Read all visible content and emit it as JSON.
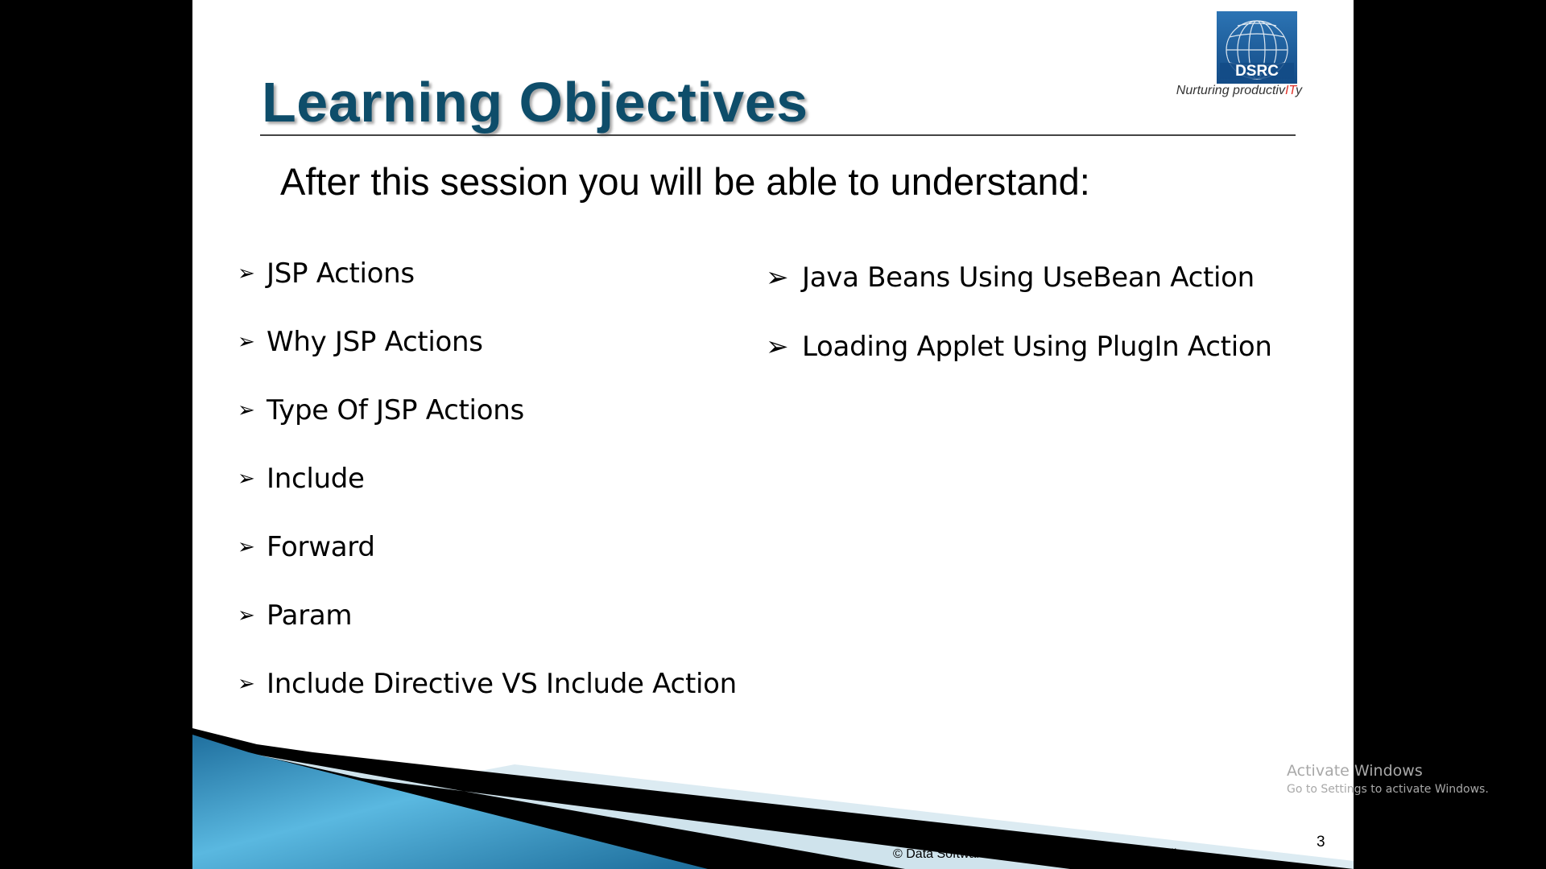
{
  "slide": {
    "title": "Learning Objectives",
    "subtitle": "After this session you will be able to understand:",
    "logo": {
      "text": "DSRC",
      "tagline_prefix": "Nurturing productiv",
      "tagline_accent": "IT",
      "tagline_suffix": "y",
      "icon": "globe-icon"
    },
    "bullet_glyph": "➢",
    "objectives_left": [
      "JSP Actions",
      "Why JSP Actions",
      "Type Of JSP Actions",
      "Include",
      "Forward",
      "Param",
      "Include Directive VS Include Action"
    ],
    "objectives_right": [
      "Java Beans Using UseBean Action",
      "Loading Applet Using PlugIn Action"
    ],
    "footer": "© Data Software Research Company Pvt Ltd. India",
    "page_number": "3"
  },
  "watermark": {
    "title": "Activate Windows",
    "subtitle": "Go to Settings to activate Windows."
  },
  "colors": {
    "title": "#0e4d6a",
    "logo_blue": "#1a5d9e",
    "swoosh_blue": "#2f95c8",
    "background": "#000000"
  }
}
